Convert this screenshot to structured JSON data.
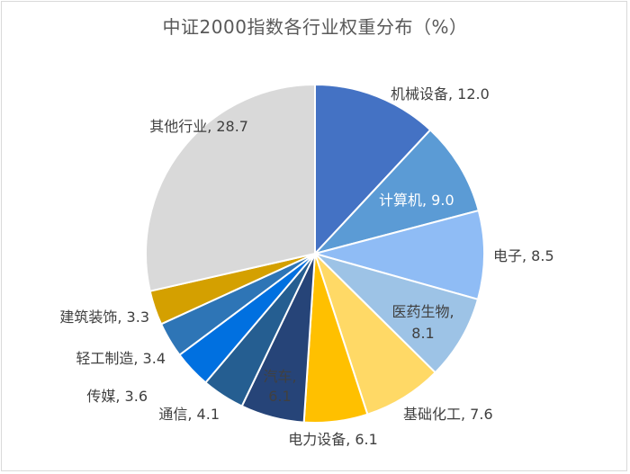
{
  "chart_data": {
    "type": "pie",
    "title": "中证2000指数各行业权重分布（%）",
    "slices": [
      {
        "label": "机械设备",
        "value": 12.0,
        "value_text": "12.0",
        "color": "#4472c4"
      },
      {
        "label": "计算机",
        "value": 9.0,
        "value_text": "9.0",
        "color": "#5b9bd5"
      },
      {
        "label": "电子",
        "value": 8.5,
        "value_text": "8.5",
        "color": "#8fbcf5"
      },
      {
        "label": "医药生物",
        "value": 8.1,
        "value_text": "8.1",
        "color": "#9dc3e6"
      },
      {
        "label": "基础化工",
        "value": 7.6,
        "value_text": "7.6",
        "color": "#ffd966"
      },
      {
        "label": "电力设备",
        "value": 6.1,
        "value_text": "6.1",
        "color": "#ffc000"
      },
      {
        "label": "汽车",
        "value": 6.1,
        "value_text": "6.1",
        "color": "#264478"
      },
      {
        "label": "通信",
        "value": 4.1,
        "value_text": "4.1",
        "color": "#255e91"
      },
      {
        "label": "传媒",
        "value": 3.6,
        "value_text": "3.6",
        "color": "#0070e0"
      },
      {
        "label": "轻工制造",
        "value": 3.4,
        "value_text": "3.4",
        "color": "#2e75b6"
      },
      {
        "label": "建筑装饰",
        "value": 3.3,
        "value_text": "3.3",
        "color": "#d4a000"
      },
      {
        "label": "其他行业",
        "value": 28.7,
        "value_text": "28.7",
        "color": "#d9d9d9"
      }
    ]
  }
}
